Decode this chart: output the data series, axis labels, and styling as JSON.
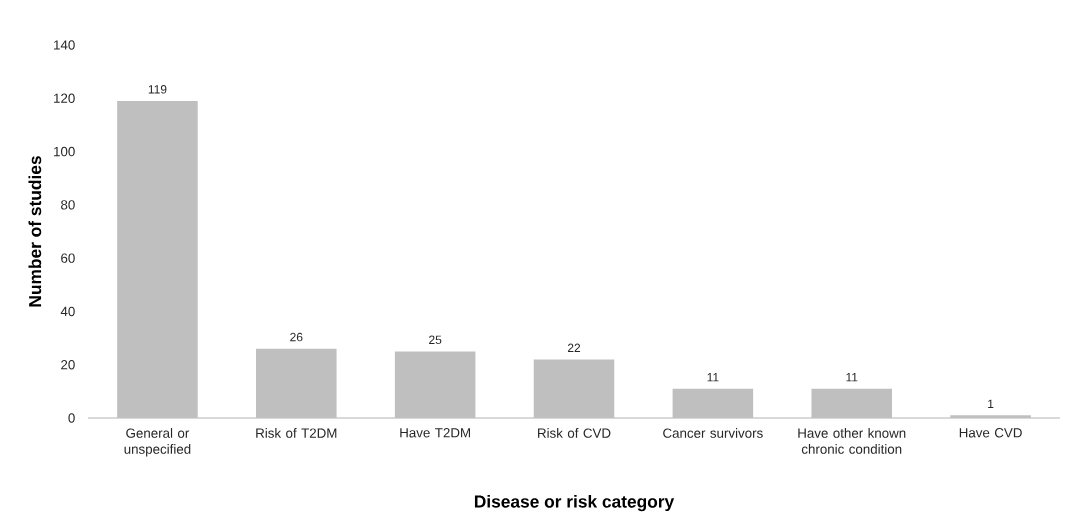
{
  "chart_data": {
    "type": "bar",
    "xlabel": "Disease or risk category",
    "ylabel": "Number of studies",
    "categories": [
      "General or unspecified",
      "Risk of T2DM",
      "Have T2DM",
      "Risk of CVD",
      "Cancer survivors",
      "Have other known chronic condition",
      "Have CVD"
    ],
    "values": [
      119,
      26,
      25,
      22,
      11,
      11,
      1
    ],
    "color": "#bfbfbf",
    "data_labels": true,
    "ylim": [
      0,
      140
    ],
    "yticks": [
      0,
      20,
      40,
      60,
      80,
      100,
      120,
      140
    ]
  }
}
